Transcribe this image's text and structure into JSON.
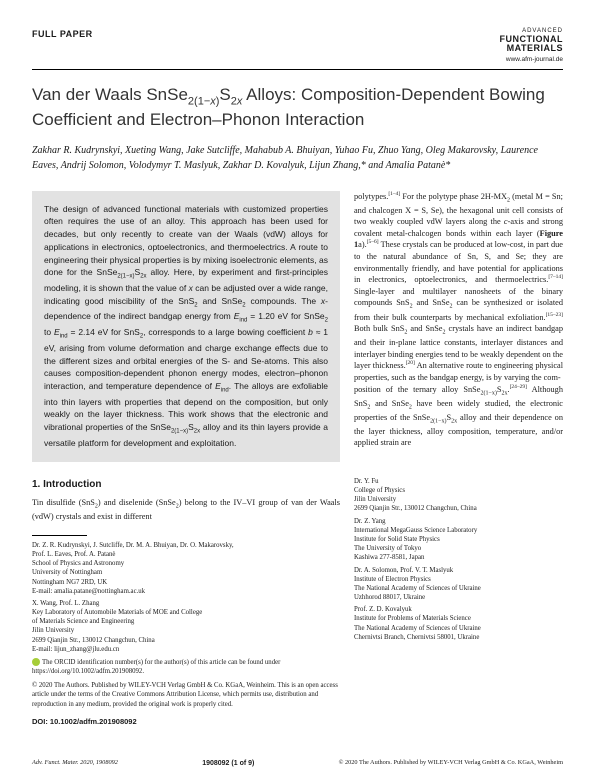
{
  "header": {
    "paperType": "FULL PAPER",
    "logoAdv": "ADVANCED",
    "logoFunc": "FUNCTIONAL",
    "logoMat": "MATERIALS",
    "url": "www.afm-journal.de"
  },
  "title": "Van der Waals SnSe₂(₁₋ₓ)S₂ₓ Alloys: Composition-Dependent Bowing Coefficient and Electron–Phonon Interaction",
  "authors": "Zakhar R. Kudrynskyi, Xueting Wang, Jake Sutcliffe, Mahabub A. Bhuiyan, Yuhao Fu, Zhuo Yang, Oleg Makarovsky, Laurence Eaves, Andrij Solomon, Volodymyr T. Maslyuk, Zakhar D. Kovalyuk, Lijun Zhang,* and Amalia Patanè*",
  "abstract": "The design of advanced functional materials with customized properties often requires the use of an alloy. This approach has been used for decades, but only recently to create van der Waals (vdW) alloys for applications in electronics, optoelectronics, and thermoelectrics. A route to engineering their physical properties is by mixing isoelectronic elements, as done for the SnSe₂(₁₋ₓ)S₂ₓ alloy. Here, by experiment and first-principles modeling, it is shown that the value of x can be adjusted over a wide range, indicating good miscibility of the SnS₂ and SnSe₂ compounds. The x-dependence of the indirect bandgap energy from E_ind = 1.20 eV for SnSe₂ to E_ind = 2.14 eV for SnS₂, corresponds to a large bowing coefficient b ≈ 1 eV, arising from volume deformation and charge exchange effects due to the different sizes and orbital energies of the S- and Se-atoms. This also causes composition-dependent phonon energy modes, electron–phonon interaction, and temperature dependence of E_ind. The alloys are exfoliable into thin layers with properties that depend on the composition, but only weakly on the layer thickness. This work shows that the electronic and vibrational properties of the SnSe₂(₁₋ₓ)S₂ₓ alloy and its thin layers provide a versatile platform for development and exploitation.",
  "sectionHeading": "1. Introduction",
  "introLeft": "Tin disulfide (SnS₂) and diselenide (SnSe₂) belong to the IV–VI group of van der Waals (vdW) crystals and exist in different",
  "introRight1": "polytypes.[1–4] For the polytype phase 2H-MX₂ (metal M = Sn; and chalcogen X = S, Se), the hexagonal unit cell consists of two weakly coupled vdW layers along the c-axis and strong covalent metal-chalcogen bonds within each layer (Figure 1a).[5–6] These crystals can be produced at low-cost, in part due to the natural abundance of Sn, S, and Se; they are environmentally friendly, and have potential for applications in electronics, optoelectronics, and thermoelectrics.[7–14] Single-layer and multilayer nanosheets of the binary compounds SnS₂ and SnSe₂ can be synthesized or isolated from their bulk counterparts by mechanical exfoliation.[15–23] Both bulk SnS₂ and SnSe₂ crystals have an indirect bandgap and their in-plane lattice constants, interlayer distances and interlayer binding energies tend to be weakly dependent on the layer thickness.[20] An alternative route to engineering physical properties, such as the bandgap energy, is by varying the com-",
  "introRight2": "position of the ternary alloy SnSe₂(₁₋ₓ)S₂ₓ.[24–29] Although SnS₂ and SnSe₂ have been widely studied, the electronic properties of the SnSe₂(₁₋ₓ)S₂ₓ alloy and their dependence on the layer thickness, alloy composition, temperature, and/or applied strain are",
  "affilLeft": [
    "Dr. Z. R. Kudrynskyi, J. Sutcliffe, Dr. M. A. Bhuiyan, Dr. O. Makarovsky, Prof. L. Eaves, Prof. A. Patanè\nSchool of Physics and Astronomy\nUniversity of Nottingham\nNottingham NG7 2RD, UK\nE-mail: amalia.patane@nottingham.ac.uk",
    "X. Wang, Prof. L. Zhang\nKey Laboratory of Automobile Materials of MOE and College of Materials Science and Engineering\nJilin University\n2699 Qianjin Str., 130012 Changchun, China\nE-mail: lijun_zhang@jlu.edu.cn"
  ],
  "orcid": "The ORCID identification number(s) for the author(s) of this article can be found under https://doi.org/10.1002/adfm.201908092.",
  "license": "© 2020 The Authors. Published by WILEY-VCH Verlag GmbH & Co. KGaA, Weinheim. This is an open access article under the terms of the Creative Commons Attribution License, which permits use, distribution and reproduction in any medium, provided the original work is properly cited.",
  "doi": "DOI: 10.1002/adfm.201908092",
  "affilRight": [
    "Dr. Y. Fu\nCollege of Physics\nJilin University\n2699 Qianjin Str., 130012 Changchun, China",
    "Dr. Z. Yang\nInternational MegaGauss Science Laboratory\nInstitute for Solid State Physics\nThe University of Tokyo\nKashiwa 277-8581, Japan",
    "Dr. A. Solomon, Prof. V. T. Maslyuk\nInstitute of Electron Physics\nThe National Academy of Sciences of Ukraine\nUzhhorod 88017, Ukraine",
    "Prof. Z. D. Kovalyuk\nInstitute for Problems of Materials Science\nThe National Academy of Sciences of Ukraine\nChernivtsi Branch, Chernivtsi 58001, Ukraine"
  ],
  "footer": {
    "left": "Adv. Funct. Mater. 2020, 1908092",
    "center": "1908092 (1 of 9)",
    "right": "© 2020 The Authors. Published by WILEY-VCH Verlag GmbH & Co. KGaA, Weinheim"
  }
}
